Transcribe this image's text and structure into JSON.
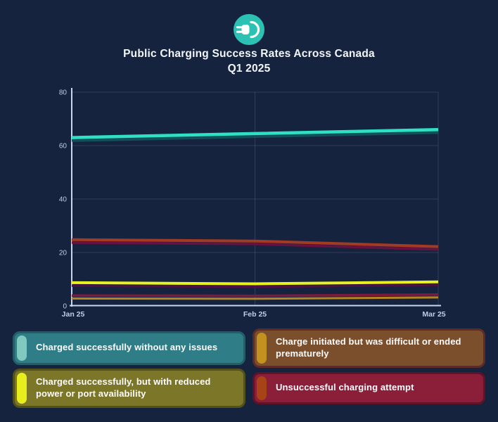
{
  "page": {
    "background": "#15233E"
  },
  "header": {
    "icon": "ev-plug-icon",
    "icon_circle_color": "#2BC2B4",
    "title_line1": "Public Charging Success Rates Across Canada",
    "title_line2": "Q1 2025"
  },
  "chart_data": {
    "type": "line",
    "title": "Public Charging Success Rates Across Canada Q1 2025",
    "categories": [
      "Jan 25",
      "Feb 25",
      "Mar 25"
    ],
    "y_ticks": [
      0,
      20,
      40,
      60,
      80
    ],
    "ylim": [
      0,
      80
    ],
    "grid": true,
    "legend_position": "bottom",
    "axis_color": "#C8D6F1",
    "grid_color": "rgba(191,205,234,0.16)",
    "tick_label_color": "#BFCDEA",
    "series": [
      {
        "key": "charged-successfully",
        "name": "Charged successfully without any issues",
        "values": [
          63,
          64.5,
          66
        ],
        "color": "#2FE0C3",
        "shadow_color": "#11555C",
        "width": 4.5
      },
      {
        "key": "initiated-difficult",
        "name": "Charge initiated but was difficult or ended prematurely",
        "values": [
          24.8,
          24.3,
          22.2
        ],
        "color": "#A33B22",
        "shadow_color": "#6E1140",
        "width": 4
      },
      {
        "key": "reduced-power",
        "name": "Charged successfully, but with reduced power or port availability",
        "values": [
          8.7,
          8.3,
          9
        ],
        "color": "#E9F122",
        "shadow_color": "#4F1244",
        "width": 4
      },
      {
        "key": "unsuccessful",
        "name": "Unsuccessful charging attempt",
        "values": [
          3.9,
          3.8,
          4.3
        ],
        "color": "#7C1B3E",
        "shadow_color": "#BD8B1E",
        "width": 3.5
      }
    ]
  },
  "legend": {
    "items": [
      {
        "label": "Charged successfully without any issues",
        "bg": "#2F7E87",
        "accent": "#7FC9BE",
        "border": "#235E68"
      },
      {
        "label": "Charge initiated but was difficult or ended prematurely",
        "bg": "#7B4F2C",
        "accent": "#C29120",
        "border": "#5E2B28"
      },
      {
        "label": "Charged successfully, but with reduced power or port availability",
        "bg": "#7B7628",
        "accent": "#E6EE1E",
        "border": "#55511A"
      },
      {
        "label": "Unsuccessful charging attempt",
        "bg": "#8B1F39",
        "accent": "#A84318",
        "border": "#611226"
      }
    ]
  }
}
